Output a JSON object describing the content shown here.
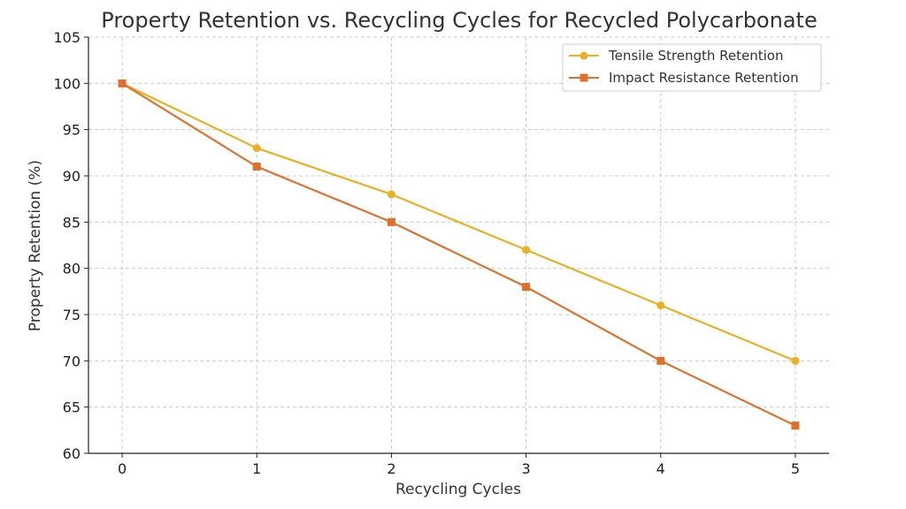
{
  "chart_data": {
    "type": "line",
    "title": "Property Retention vs. Recycling Cycles for Recycled Polycarbonate",
    "xlabel": "Recycling Cycles",
    "ylabel": "Property Retention (%)",
    "x": [
      0,
      1,
      2,
      3,
      4,
      5
    ],
    "xlim": [
      -0.25,
      5.25
    ],
    "ylim": [
      60,
      105
    ],
    "yticks": [
      60,
      65,
      70,
      75,
      80,
      85,
      90,
      95,
      100,
      105
    ],
    "xticks": [
      0,
      1,
      2,
      3,
      4,
      5
    ],
    "grid": true,
    "legend_position": "top-right",
    "series": [
      {
        "name": "Tensile Strength Retention",
        "values": [
          100,
          93,
          88,
          82,
          76,
          70
        ],
        "color": "#EBB024",
        "marker": "circle"
      },
      {
        "name": "Impact Resistance Retention",
        "values": [
          100,
          91,
          85,
          78,
          70,
          63
        ],
        "color": "#E0702C",
        "marker": "square"
      }
    ]
  }
}
